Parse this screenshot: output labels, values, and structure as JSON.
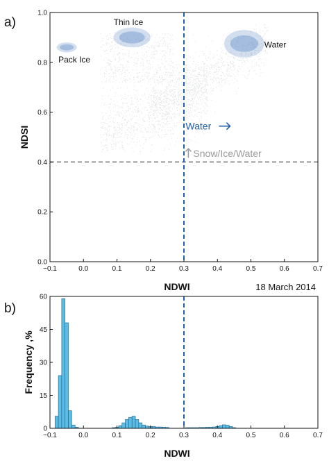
{
  "chart_data": [
    {
      "panel": "a)",
      "type": "scatter",
      "xlabel": "NDWI",
      "ylabel": "NDSI",
      "xlim": [
        -0.1,
        0.7
      ],
      "ylim": [
        0.0,
        1.0
      ],
      "xticks": [
        "-0.1",
        "0.0",
        "0.1",
        "0.2",
        "0.3",
        "0.4",
        "0.5",
        "0.6",
        "0.7"
      ],
      "yticks": [
        "0.0",
        "0.2",
        "0.4",
        "0.6",
        "0.8",
        "1.0"
      ],
      "grid": false,
      "point_color": "#9aa0a6",
      "cluster_color": "#4f7fbf",
      "vline": {
        "x": 0.3,
        "color": "#1f5fae",
        "style": "dashed"
      },
      "hline": {
        "y": 0.4,
        "color": "#9a9a9a",
        "style": "dashed"
      },
      "clusters": [
        {
          "label": "Pack Ice",
          "x_range": [
            -0.08,
            -0.02
          ],
          "y_range": [
            0.84,
            0.88
          ]
        },
        {
          "label": "Thin Ice",
          "x_range": [
            0.09,
            0.2
          ],
          "y_range": [
            0.86,
            0.94
          ]
        },
        {
          "label": "Water",
          "x_range": [
            0.42,
            0.54
          ],
          "y_range": [
            0.82,
            0.93
          ]
        }
      ],
      "annotations": [
        {
          "text": "Pack Ice",
          "x": -0.075,
          "y": 0.8
        },
        {
          "text": "Thin Ice",
          "x": 0.09,
          "y": 0.95
        },
        {
          "text": "Water",
          "x": 0.54,
          "y": 0.86
        },
        {
          "text": "Water",
          "x": 0.305,
          "y": 0.53,
          "arrow": "right",
          "color": "#1f5fae"
        },
        {
          "text": "Snow/Ice/Water",
          "x": 0.305,
          "y": 0.42,
          "arrow": "up",
          "color": "#9a9a9a"
        }
      ],
      "date_label": "18 March 2014"
    },
    {
      "panel": "b)",
      "type": "bar",
      "xlabel": "NDWI",
      "ylabel": "Frequency ,%",
      "xlim": [
        -0.1,
        0.7
      ],
      "ylim": [
        0,
        60
      ],
      "xticks": [
        "-0.1",
        "0.0",
        "0.1",
        "0.2",
        "0.3",
        "0.4",
        "0.5",
        "0.6",
        "0.7"
      ],
      "yticks": [
        "0",
        "15",
        "30",
        "45",
        "60"
      ],
      "bar_color": "#5bbde6",
      "vline": {
        "x": 0.3,
        "color": "#1f5fae",
        "style": "dashed"
      },
      "bin_width": 0.01,
      "bins": [
        {
          "x": -0.08,
          "value": 5.5
        },
        {
          "x": -0.07,
          "value": 24
        },
        {
          "x": -0.06,
          "value": 59
        },
        {
          "x": -0.05,
          "value": 48
        },
        {
          "x": -0.04,
          "value": 8
        },
        {
          "x": -0.03,
          "value": 1.5
        },
        {
          "x": -0.02,
          "value": 0.5
        },
        {
          "x": 0.09,
          "value": 0.3
        },
        {
          "x": 0.1,
          "value": 0.5
        },
        {
          "x": 0.11,
          "value": 1.2
        },
        {
          "x": 0.12,
          "value": 2.5
        },
        {
          "x": 0.13,
          "value": 4
        },
        {
          "x": 0.14,
          "value": 5
        },
        {
          "x": 0.15,
          "value": 5.5
        },
        {
          "x": 0.16,
          "value": 4
        },
        {
          "x": 0.17,
          "value": 2.5
        },
        {
          "x": 0.18,
          "value": 1.5
        },
        {
          "x": 0.19,
          "value": 1
        },
        {
          "x": 0.2,
          "value": 0.8
        },
        {
          "x": 0.21,
          "value": 0.8
        },
        {
          "x": 0.22,
          "value": 0.6
        },
        {
          "x": 0.23,
          "value": 0.6
        },
        {
          "x": 0.24,
          "value": 0.5
        },
        {
          "x": 0.25,
          "value": 0.4
        },
        {
          "x": 0.31,
          "value": 0.3
        },
        {
          "x": 0.32,
          "value": 0.3
        },
        {
          "x": 0.33,
          "value": 0.3
        },
        {
          "x": 0.34,
          "value": 0.3
        },
        {
          "x": 0.35,
          "value": 0.4
        },
        {
          "x": 0.36,
          "value": 0.4
        },
        {
          "x": 0.37,
          "value": 0.5
        },
        {
          "x": 0.38,
          "value": 0.5
        },
        {
          "x": 0.39,
          "value": 0.6
        },
        {
          "x": 0.4,
          "value": 0.8
        },
        {
          "x": 0.41,
          "value": 1.2
        },
        {
          "x": 0.42,
          "value": 1.6
        },
        {
          "x": 0.43,
          "value": 1.4
        },
        {
          "x": 0.44,
          "value": 0.8
        },
        {
          "x": 0.45,
          "value": 0.3
        }
      ]
    }
  ]
}
